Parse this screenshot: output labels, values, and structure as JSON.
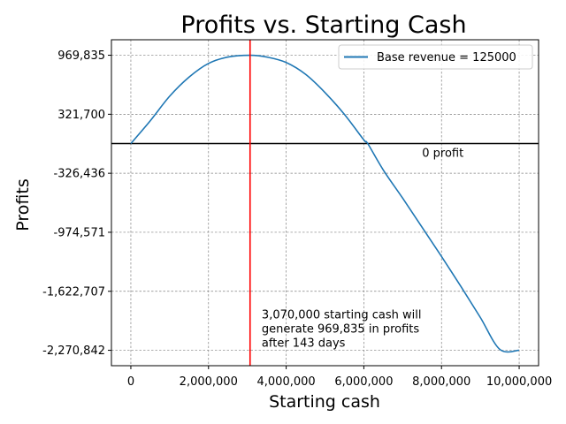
{
  "chart_data": {
    "type": "line",
    "title": "Profits vs. Starting Cash",
    "xlabel": "Starting cash",
    "ylabel": "Profits",
    "xlim": [
      -500000,
      10500000
    ],
    "ylim": [
      -2440000,
      1140000
    ],
    "x_ticks": [
      0,
      2000000,
      4000000,
      6000000,
      8000000,
      10000000
    ],
    "x_tick_labels": [
      "0",
      "2,000,000",
      "4,000,000",
      "6,000,000",
      "8,000,000",
      "10,000,000"
    ],
    "y_ticks": [
      969835,
      321700,
      -326436,
      -974571,
      -1622707,
      -2270842
    ],
    "y_tick_labels": [
      "969,835",
      "321,700",
      "-326,436",
      "-974,571",
      "-1,622,707",
      "-2,270,842"
    ],
    "grid": true,
    "legend_position": "top-right",
    "series": [
      {
        "name": "Base revenue = 125000",
        "color": "#1f77b4",
        "x": [
          0,
          500000,
          1000000,
          1500000,
          2000000,
          2500000,
          3070000,
          3500000,
          4000000,
          4500000,
          5000000,
          5500000,
          6000000,
          6100000,
          6500000,
          7000000,
          7500000,
          8000000,
          8500000,
          9000000,
          9500000,
          10000000
        ],
        "y": [
          0,
          250000,
          520000,
          730000,
          880000,
          950000,
          969835,
          950000,
          890000,
          760000,
          560000,
          320000,
          40000,
          0,
          -290000,
          -600000,
          -920000,
          -1240000,
          -1570000,
          -1910000,
          -2260000,
          -2270842
        ]
      }
    ],
    "reference_lines": {
      "zero_profit": {
        "y": 0,
        "color": "#000000",
        "label": "0 profit"
      },
      "optimal_cash": {
        "x": 3070000,
        "color": "#ff0000"
      }
    },
    "annotation": {
      "x": 3370000,
      "y": -2270842,
      "lines": [
        "3,070,000 starting cash will",
        "generate 969,835 in profits",
        "after 143 days"
      ]
    }
  }
}
